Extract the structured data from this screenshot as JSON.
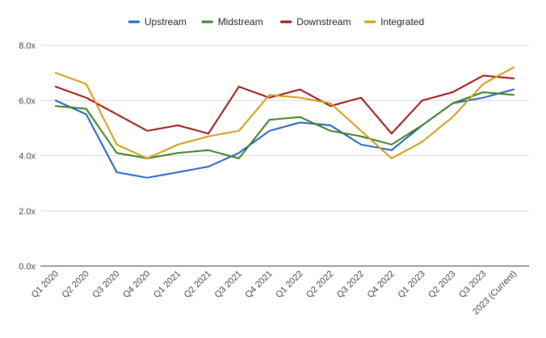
{
  "chart_data": {
    "type": "line",
    "title": "",
    "xlabel": "",
    "ylabel": "",
    "categories": [
      "Q1 2020",
      "Q2 2020",
      "Q3 2020",
      "Q4 2020",
      "Q1 2021",
      "Q2 2021",
      "Q3 2021",
      "Q4 2021",
      "Q1 2022",
      "Q2 2022",
      "Q3 2022",
      "Q4 2022",
      "Q1 2023",
      "Q2 2023",
      "Q3 2023",
      "2023 (Current)"
    ],
    "y_ticks": [
      "0.0x",
      "2.0x",
      "4.0x",
      "6.0x",
      "8.0x"
    ],
    "y_tick_values": [
      0,
      2,
      4,
      6,
      8
    ],
    "ylim": [
      0,
      8
    ],
    "grid": true,
    "legend_position": "top",
    "series": [
      {
        "name": "Upstream",
        "color": "#1f5fbf",
        "values": [
          6.0,
          5.5,
          3.4,
          3.2,
          3.4,
          3.6,
          4.1,
          4.9,
          5.2,
          5.1,
          4.4,
          4.2,
          5.1,
          5.9,
          6.1,
          6.4
        ]
      },
      {
        "name": "Midstream",
        "color": "#3a7d1e",
        "values": [
          5.8,
          5.7,
          4.1,
          3.9,
          4.1,
          4.2,
          3.9,
          5.3,
          5.4,
          4.9,
          4.7,
          4.4,
          5.1,
          5.9,
          6.3,
          6.2
        ]
      },
      {
        "name": "Downstream",
        "color": "#9b0f0f",
        "values": [
          6.5,
          6.1,
          5.5,
          4.9,
          5.1,
          4.8,
          6.5,
          6.1,
          6.4,
          5.8,
          6.1,
          4.8,
          6.0,
          6.3,
          6.9,
          6.8
        ]
      },
      {
        "name": "Integrated",
        "color": "#d19a0c",
        "values": [
          7.0,
          6.6,
          4.4,
          3.9,
          4.4,
          4.7,
          4.9,
          6.2,
          6.1,
          5.9,
          4.9,
          3.9,
          4.5,
          5.4,
          6.6,
          7.2
        ]
      }
    ]
  }
}
